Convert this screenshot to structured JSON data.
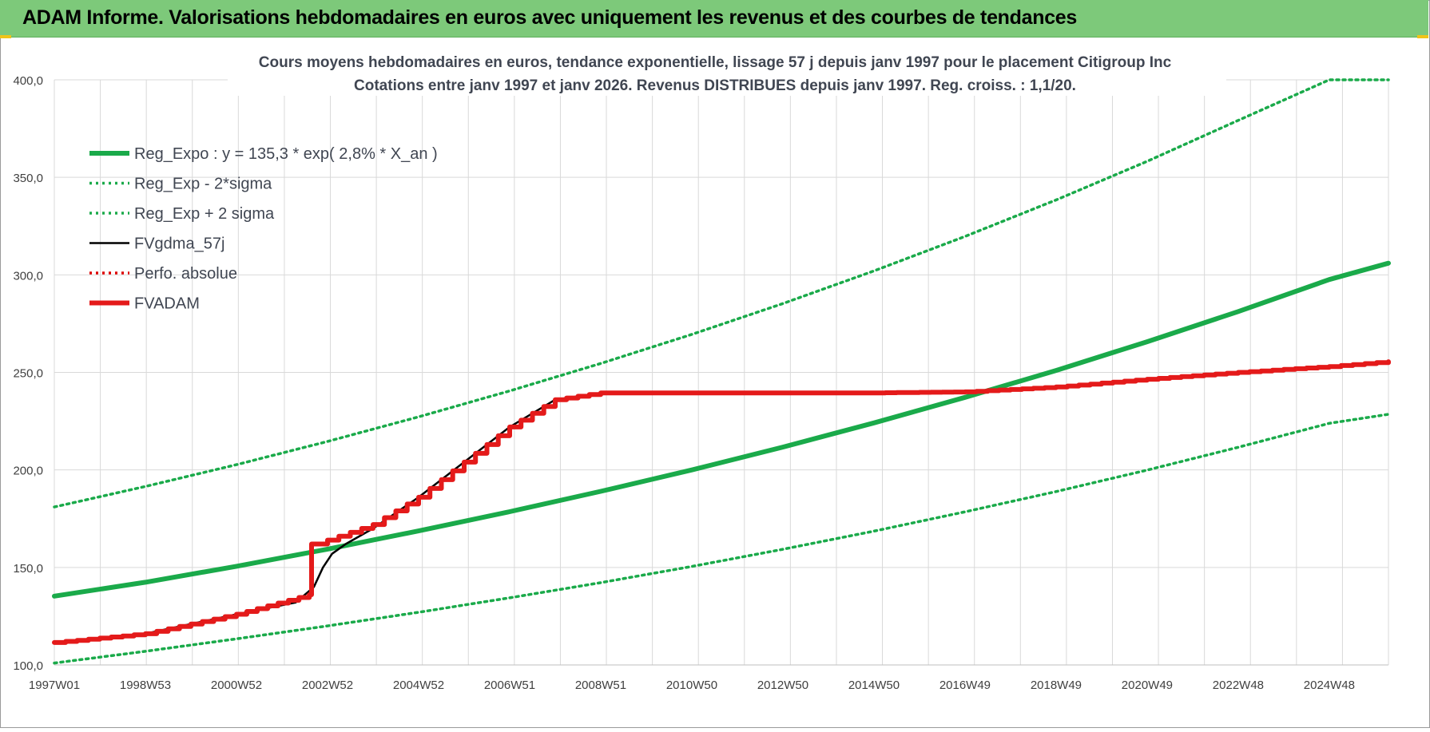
{
  "header": {
    "title": "ADAM Informe. Valorisations hebdomadaires en euros avec uniquement les revenus et des courbes de tendances"
  },
  "colors": {
    "header_bg": "#7dc97a",
    "reg_expo": "#1aaa4a",
    "fvgdma": "#000000",
    "perfo": "#dd0000",
    "fvadam": "#e41a1a",
    "grid": "#d9d9d9"
  },
  "chart_data": {
    "type": "line",
    "title_line1": "Cours moyens hebdomadaires en euros, tendance exponentielle, lissage 57 j depuis janv 1997  pour le placement Citigroup Inc",
    "title_line2": "Cotations entre janv 1997 et janv 2026. Revenus DISTRIBUES depuis janv 1997. Reg. croiss. : 1,1/20.",
    "xlabel": "",
    "ylabel": "",
    "ylim": [
      100,
      400
    ],
    "xlim": [
      1997.0,
      2026.3
    ],
    "grid": true,
    "legend_position": "top-left",
    "y_ticks": [
      "100,0",
      "150,0",
      "200,0",
      "250,0",
      "300,0",
      "350,0",
      "400,0"
    ],
    "y_tick_values": [
      100,
      150,
      200,
      250,
      300,
      350,
      400
    ],
    "x_ticks": [
      "1997W01",
      "1998W53",
      "2000W52",
      "2002W52",
      "2004W52",
      "2006W51",
      "2008W51",
      "2010W50",
      "2012W50",
      "2014W50",
      "2016W49",
      "2018W49",
      "2020W49",
      "2022W48",
      "2024W48"
    ],
    "series": [
      {
        "name": "Reg_Expo : y = 135,3 * exp( 2,8% *  X_an )",
        "style": "solid-thick",
        "color": "#1aaa4a",
        "x": [
          1997.0,
          1999.0,
          2001.0,
          2003.0,
          2005.0,
          2007.0,
          2009.0,
          2011.0,
          2013.0,
          2015.0,
          2017.0,
          2019.0,
          2021.0,
          2023.0,
          2025.0,
          2026.3
        ],
        "y": [
          135.3,
          142.4,
          150.6,
          159.4,
          168.7,
          178.6,
          189.0,
          200.0,
          211.7,
          224.1,
          237.2,
          251.0,
          265.7,
          281.2,
          297.6,
          306.0
        ]
      },
      {
        "name": "Reg_Exp - 2*sigma",
        "style": "dotted",
        "color": "#1aaa4a",
        "x": [
          1997.0,
          1999.0,
          2001.0,
          2003.0,
          2005.0,
          2007.0,
          2009.0,
          2011.0,
          2013.0,
          2015.0,
          2017.0,
          2019.0,
          2021.0,
          2023.0,
          2025.0,
          2026.3
        ],
        "y": [
          101.0,
          107.0,
          113.4,
          120.0,
          127.0,
          134.4,
          142.2,
          150.5,
          159.3,
          168.6,
          178.5,
          188.9,
          199.9,
          211.6,
          223.9,
          228.5
        ]
      },
      {
        "name": "Reg_Exp + 2 sigma",
        "style": "dotted",
        "color": "#1aaa4a",
        "x": [
          1997.0,
          1999.0,
          2001.0,
          2003.0,
          2005.0,
          2007.0,
          2009.0,
          2011.0,
          2013.0,
          2015.0,
          2017.0,
          2019.0,
          2021.0,
          2023.0,
          2025.0,
          2026.3
        ],
        "y": [
          181.0,
          191.5,
          202.7,
          214.6,
          227.2,
          240.5,
          254.6,
          269.5,
          285.3,
          302.0,
          319.7,
          338.4,
          358.2,
          379.2,
          400.0,
          400.0
        ]
      },
      {
        "name": "FVgdma_57j",
        "style": "solid",
        "color": "#000000",
        "x": [
          1997.0,
          1999.0,
          2001.0,
          2002.3,
          2002.7,
          2002.9,
          2003.1,
          2003.4,
          2004.0,
          2005.0,
          2006.0,
          2007.0,
          2008.0,
          2009.0,
          2012.0,
          2015.0,
          2017.0,
          2019.0,
          2021.0,
          2023.0,
          2025.0,
          2026.3
        ],
        "y": [
          111.5,
          116.0,
          126.0,
          132.0,
          140.0,
          150.0,
          157.0,
          162.0,
          170.0,
          186.0,
          204.0,
          222.0,
          236.0,
          239.5,
          239.5,
          239.5,
          240.0,
          242.5,
          246.5,
          250.0,
          253.0,
          255.5
        ]
      },
      {
        "name": "Perfo. absolue",
        "style": "dotted",
        "color": "#dd0000",
        "x": [
          1997.0,
          1999.0,
          2001.0,
          2002.6,
          2002.65,
          2003.0,
          2004.0,
          2005.0,
          2006.0,
          2007.0,
          2008.0,
          2009.0,
          2012.0,
          2015.0,
          2017.0,
          2019.0,
          2021.0,
          2023.0,
          2025.0,
          2026.3
        ],
        "y": [
          111.5,
          116.0,
          126.0,
          136.0,
          162.0,
          164.0,
          172.0,
          186.0,
          204.0,
          222.0,
          236.0,
          239.5,
          239.5,
          239.5,
          240.0,
          242.5,
          246.5,
          250.0,
          253.0,
          255.5
        ]
      },
      {
        "name": "FVADAM",
        "style": "solid-thick",
        "color": "#e41a1a",
        "x": [
          1997.0,
          1999.0,
          2001.0,
          2002.6,
          2002.65,
          2003.0,
          2004.0,
          2005.0,
          2006.0,
          2007.0,
          2008.0,
          2009.0,
          2012.0,
          2015.0,
          2017.0,
          2019.0,
          2021.0,
          2023.0,
          2025.0,
          2026.3
        ],
        "y": [
          111.5,
          116.0,
          126.0,
          136.0,
          162.0,
          164.0,
          172.0,
          186.0,
          204.0,
          222.0,
          236.0,
          239.5,
          239.5,
          239.5,
          240.0,
          242.5,
          246.5,
          250.0,
          253.0,
          255.5
        ]
      }
    ]
  }
}
